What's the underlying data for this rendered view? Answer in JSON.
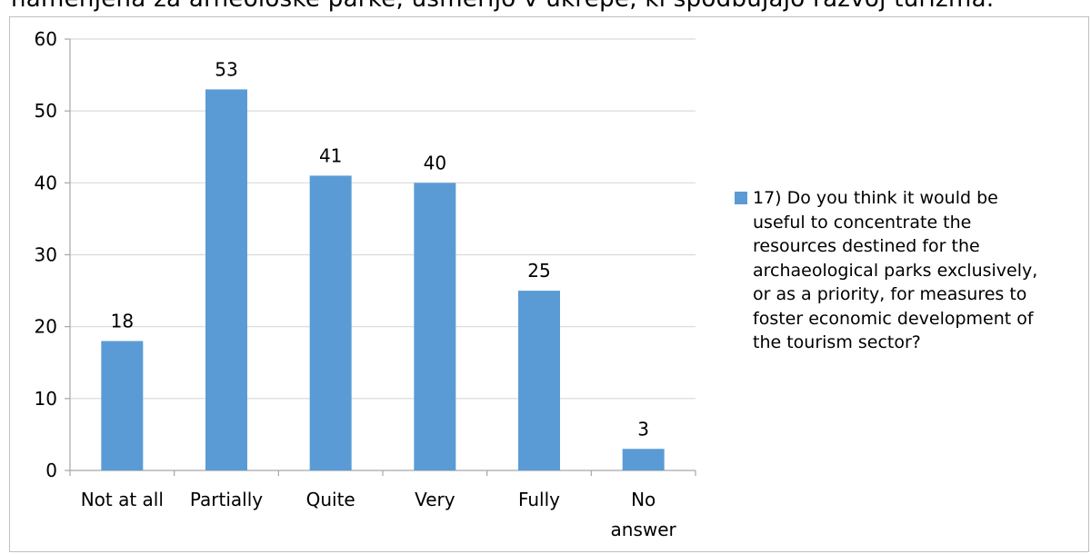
{
  "header": {
    "text": "namenjena za arheološke parke, usmerijo v ukrepe, ki spodbujajo razvoj turizma."
  },
  "chart_data": {
    "type": "bar",
    "categories": [
      "Not at all",
      "Partially",
      "Quite",
      "Very",
      "Fully",
      "No answer"
    ],
    "series": [
      {
        "name": "17) Do you think it would be useful to concentrate the resources destined for the archaeological parks exclusively, or as a priority, for measures to foster economic development of the tourism sector?",
        "values": [
          18,
          53,
          41,
          40,
          25,
          3
        ],
        "color": "#5b9bd5"
      }
    ],
    "ylim": [
      0,
      60
    ],
    "yticks": [
      0,
      10,
      20,
      30,
      40,
      50,
      60
    ],
    "grid": true,
    "data_labels": true,
    "legend_position": "right"
  }
}
